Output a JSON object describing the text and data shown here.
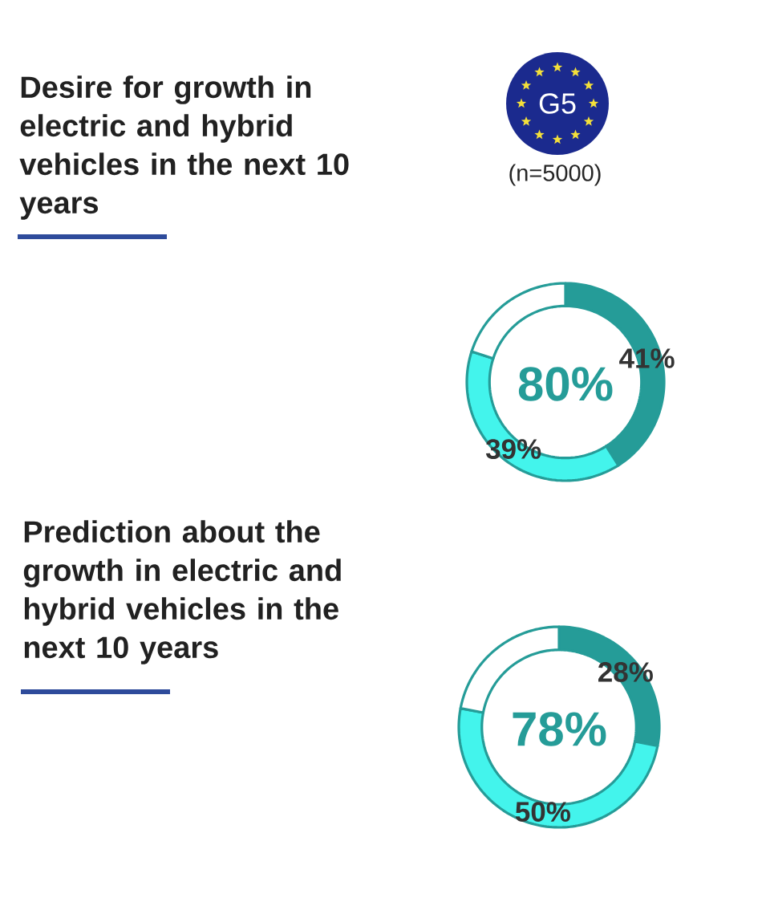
{
  "chart_data": [
    {
      "type": "donut",
      "title": "Desire for growth in electric and hybrid vehicles in the next 10 years",
      "subtitle": "(n=5000)",
      "categories": [
        null,
        null,
        null
      ],
      "values": [
        41,
        39,
        20
      ],
      "colors": [
        "#259c98",
        "#43f4ec",
        "#ffffff"
      ],
      "value_labels": [
        "41%",
        "39%",
        null
      ],
      "annotations": [
        "G5",
        "80%"
      ]
    },
    {
      "type": "donut",
      "title": "Prediction about the growth in electric and hybrid vehicles in the next 10 years",
      "categories": [
        null,
        null,
        null
      ],
      "values": [
        28,
        50,
        22
      ],
      "colors": [
        "#259c98",
        "#43f4ec",
        "#ffffff"
      ],
      "value_labels": [
        "28%",
        "50%",
        null
      ],
      "annotations": [
        "78%"
      ]
    }
  ]
}
